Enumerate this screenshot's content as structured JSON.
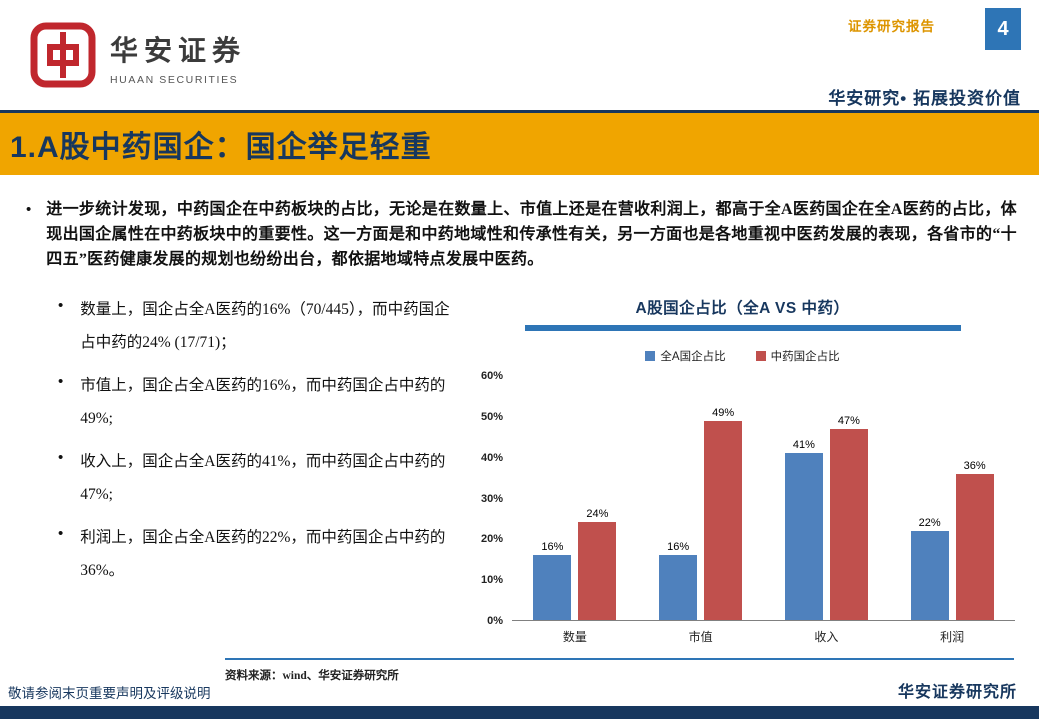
{
  "meta": {
    "report_type": "证券研究报告",
    "page_number": "4",
    "brand_line": "华安研究• 拓展投资价值"
  },
  "logo": {
    "name_cn": "华安证券",
    "name_en": "HUAAN SECURITIES"
  },
  "colors": {
    "accent-yellow": "#F0A500",
    "navy": "#17375E",
    "steel-blue": "#2E75B6",
    "logo-red": "#C0272D",
    "gold-text": "#DD9500"
  },
  "title_bar": {
    "title": "1.A股中药国企：国企举足轻重"
  },
  "body": {
    "intro": "进一步统计发现，中药国企在中药板块的占比，无论是在数量上、市值上还是在营收利润上，都高于全A医药国企在全A医药的占比，体现出国企属性在中药板块中的重要性。这一方面是和中药地域性和传承性有关，另一方面也是各地重视中医药发展的表现，各省市的“十四五”医药健康发展的规划也纷纷出台，都依据地域特点发展中医药。",
    "bullets": [
      "数量上，国企占全A医药的16%（70/445），而中药国企占中药的24% (17/71)；",
      "市值上，国企占全A医药的16%，而中药国企占中药的49%;",
      "收入上，国企占全A医药的41%，而中药国企占中药的47%;",
      "利润上，国企占全A医药的22%，而中药国企占中药的36%。"
    ]
  },
  "chart_data": {
    "type": "bar",
    "title": "A股国企占比（全A VS 中药）",
    "categories": [
      "数量",
      "市值",
      "收入",
      "利润"
    ],
    "series": [
      {
        "name": "全A国企占比",
        "color": "#4F81BD",
        "values": [
          16,
          16,
          41,
          22
        ]
      },
      {
        "name": "中药国企占比",
        "color": "#C0504D",
        "values": [
          24,
          49,
          47,
          36
        ]
      }
    ],
    "value_suffix": "%",
    "ylim": [
      0,
      60
    ],
    "ytick_step": 10,
    "ytick_suffix": "%",
    "legend_position": "top",
    "grid": false
  },
  "footer": {
    "source": "资料来源：wind、华安证券研究所",
    "disclaimer": "敬请参阅末页重要声明及评级说明",
    "institute": "华安证券研究所"
  }
}
